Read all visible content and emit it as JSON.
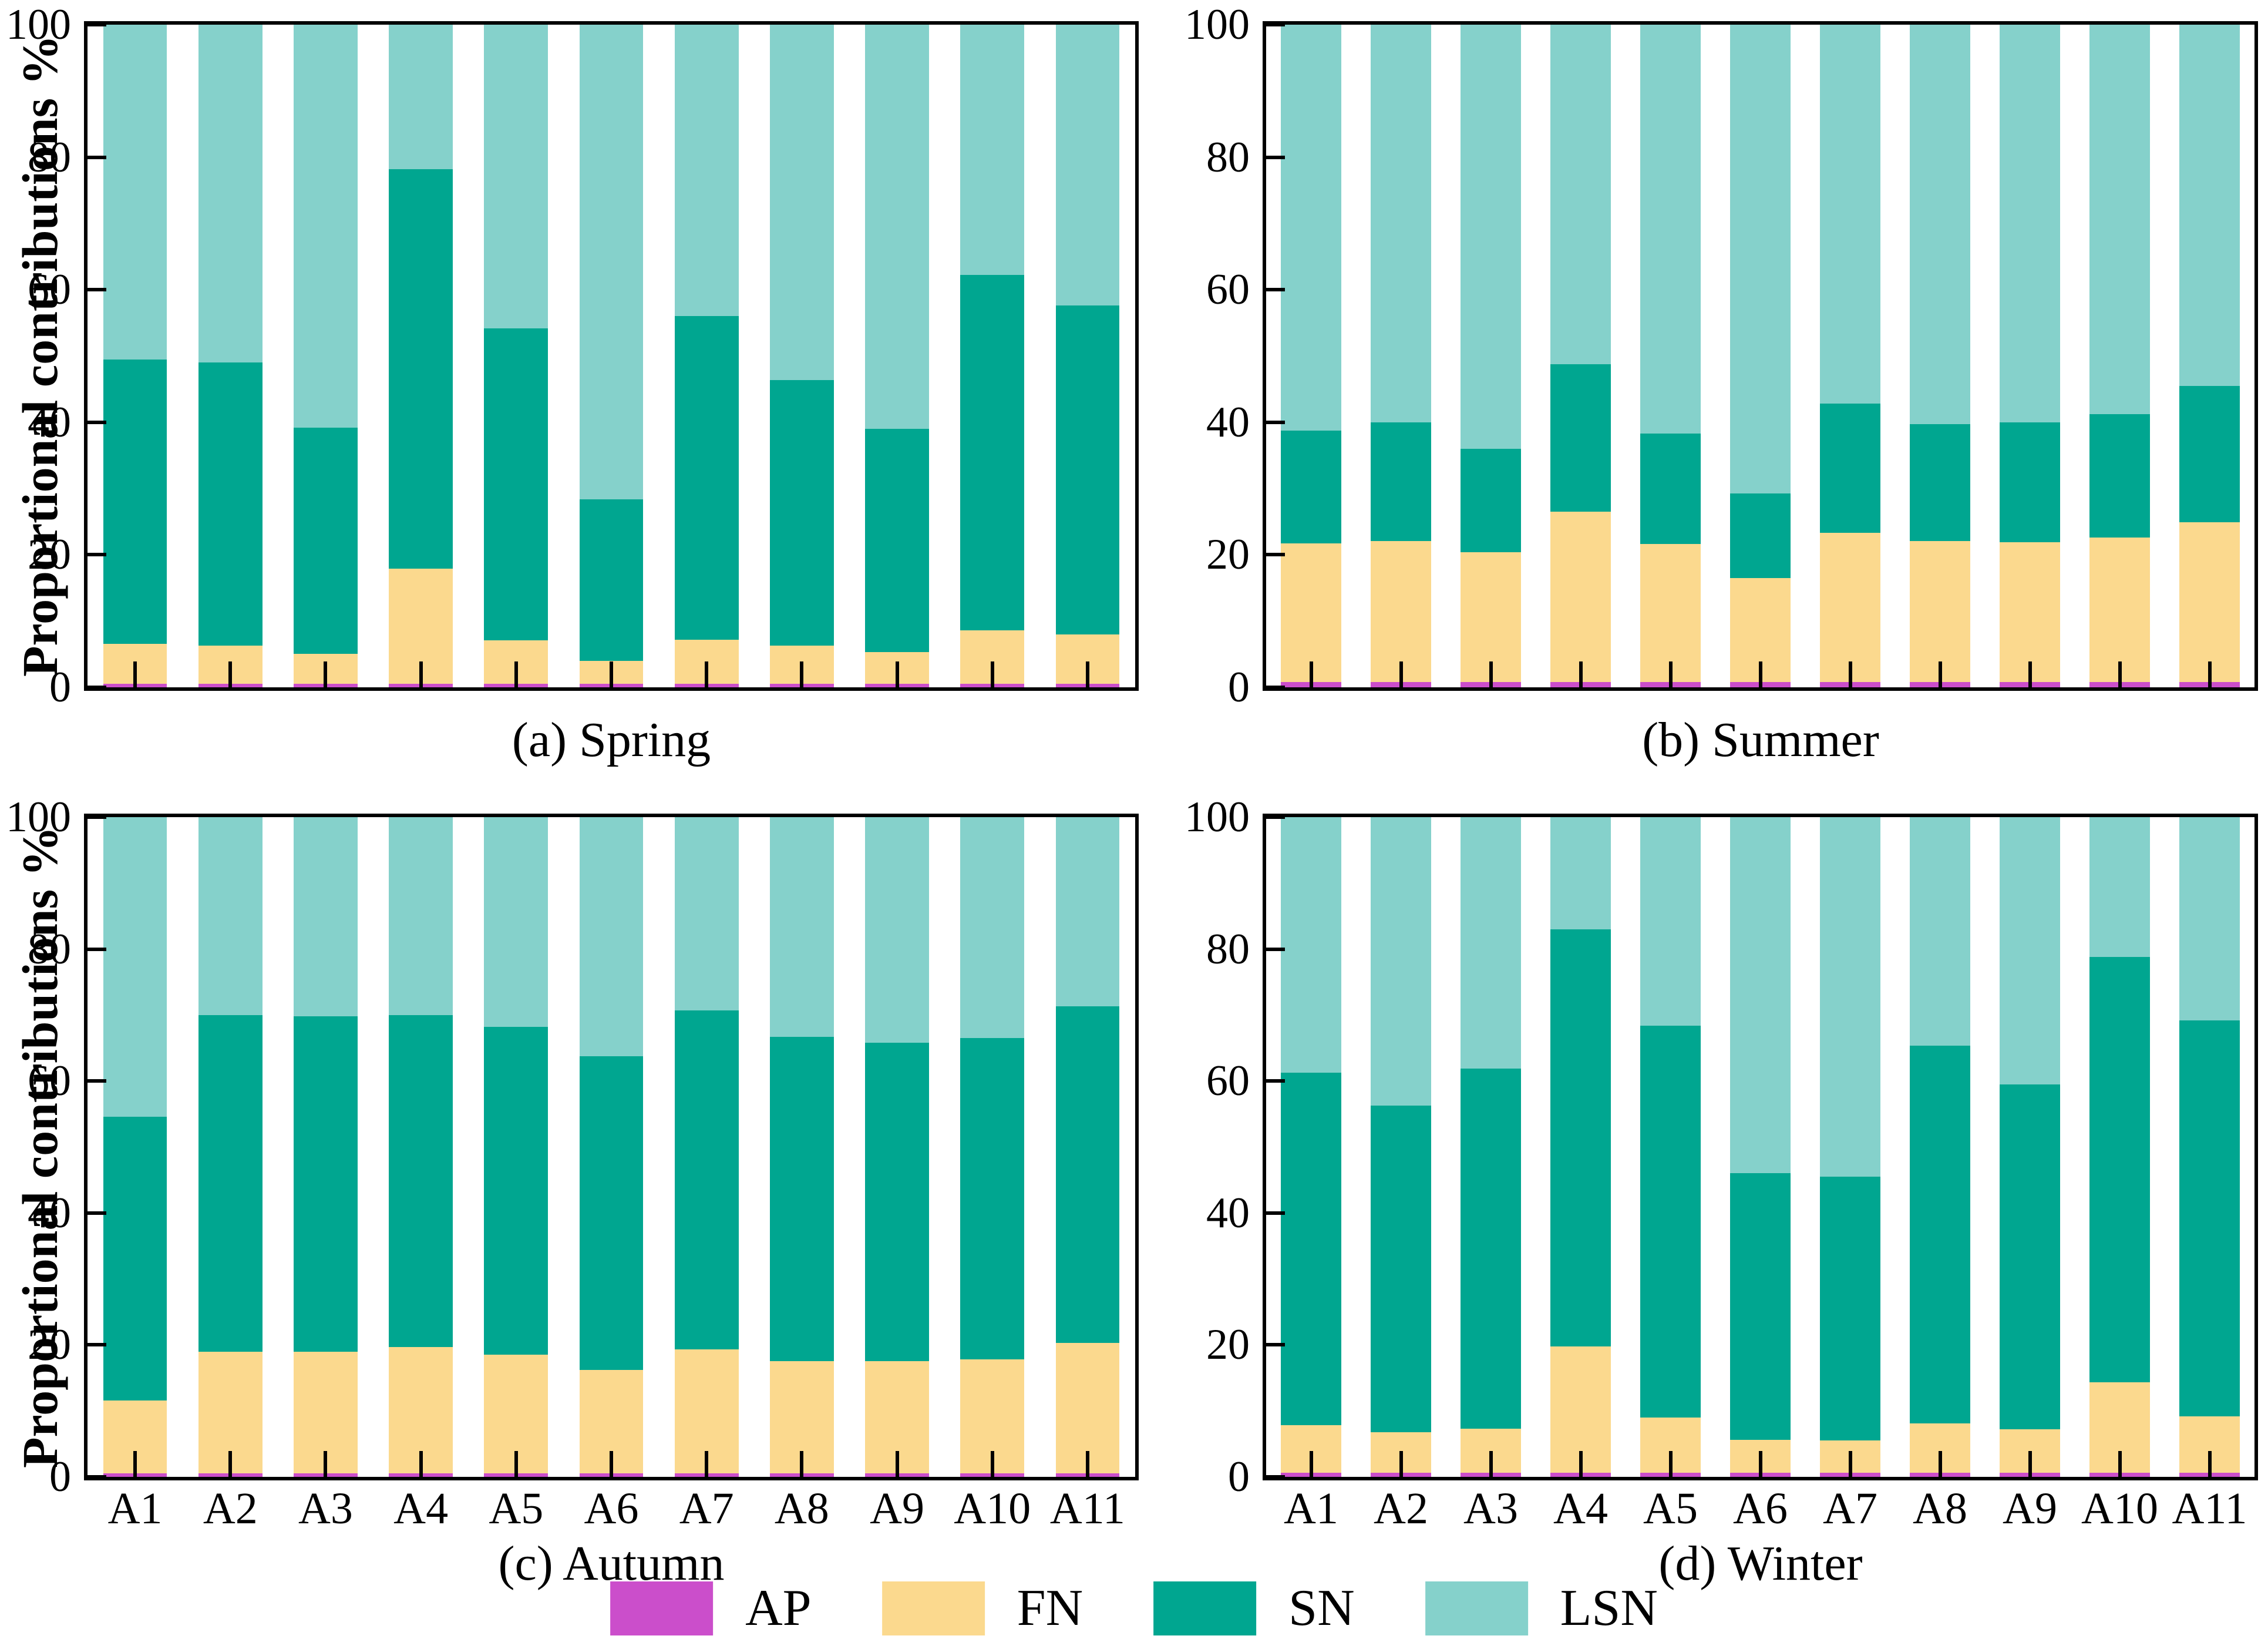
{
  "figure": {
    "ylabel": "Proportional contributions %",
    "yticks": [
      0,
      20,
      40,
      60,
      80,
      100
    ],
    "background": "#ffffff",
    "axis_color": "#000000"
  },
  "legend": {
    "entries": [
      {
        "label": "AP",
        "color": "#cb4ecb"
      },
      {
        "label": "FN",
        "color": "#fbd98e"
      },
      {
        "label": "SN",
        "color": "#00a690"
      },
      {
        "label": "LSN",
        "color": "#85d1cb"
      }
    ]
  },
  "chart_data": [
    {
      "type": "bar",
      "stacked": true,
      "title": "(a) Spring",
      "show_x_labels": false,
      "ylim": [
        0,
        100
      ],
      "categories": [
        "A1",
        "A2",
        "A3",
        "A4",
        "A5",
        "A6",
        "A7",
        "A8",
        "A9",
        "A10",
        "A11"
      ],
      "series": [
        {
          "name": "AP",
          "color": "#cb4ecb",
          "values": [
            0.5,
            0.5,
            0.5,
            0.5,
            0.5,
            0.5,
            0.5,
            0.5,
            0.5,
            0.5,
            0.5
          ]
        },
        {
          "name": "FN",
          "color": "#fbd98e",
          "values": [
            6.1,
            5.8,
            4.6,
            17.4,
            6.6,
            3.5,
            6.7,
            5.8,
            4.8,
            8.1,
            7.5
          ]
        },
        {
          "name": "SN",
          "color": "#00a690",
          "values": [
            42.9,
            42.7,
            34.1,
            60.3,
            47.1,
            24.4,
            48.8,
            40.1,
            33.7,
            53.6,
            49.6
          ]
        },
        {
          "name": "LSN",
          "color": "#85d1cb",
          "values": [
            50.5,
            51.0,
            60.8,
            21.8,
            45.8,
            71.6,
            44.0,
            53.6,
            61.0,
            37.8,
            42.4
          ]
        }
      ]
    },
    {
      "type": "bar",
      "stacked": true,
      "title": "(b) Summer",
      "show_x_labels": false,
      "ylim": [
        0,
        100
      ],
      "categories": [
        "A1",
        "A2",
        "A3",
        "A4",
        "A5",
        "A6",
        "A7",
        "A8",
        "A9",
        "A10",
        "A11"
      ],
      "series": [
        {
          "name": "AP",
          "color": "#cb4ecb",
          "values": [
            0.8,
            0.8,
            0.8,
            0.8,
            0.8,
            0.8,
            0.8,
            0.8,
            0.8,
            0.8,
            0.8
          ]
        },
        {
          "name": "FN",
          "color": "#fbd98e",
          "values": [
            20.9,
            21.3,
            19.6,
            25.7,
            20.8,
            15.7,
            22.5,
            21.3,
            21.1,
            21.8,
            24.1
          ]
        },
        {
          "name": "SN",
          "color": "#00a690",
          "values": [
            17.0,
            17.9,
            15.6,
            22.3,
            16.7,
            12.8,
            19.5,
            17.6,
            18.1,
            18.6,
            20.6
          ]
        },
        {
          "name": "LSN",
          "color": "#85d1cb",
          "values": [
            61.3,
            60.0,
            64.0,
            51.2,
            61.7,
            70.7,
            57.2,
            60.3,
            60.0,
            58.8,
            54.5
          ]
        }
      ]
    },
    {
      "type": "bar",
      "stacked": true,
      "title": "(c) Autumn",
      "show_x_labels": true,
      "ylim": [
        0,
        100
      ],
      "categories": [
        "A1",
        "A2",
        "A3",
        "A4",
        "A5",
        "A6",
        "A7",
        "A8",
        "A9",
        "A10",
        "A11"
      ],
      "series": [
        {
          "name": "AP",
          "color": "#cb4ecb",
          "values": [
            0.5,
            0.5,
            0.5,
            0.5,
            0.5,
            0.5,
            0.5,
            0.5,
            0.5,
            0.5,
            0.5
          ]
        },
        {
          "name": "FN",
          "color": "#fbd98e",
          "values": [
            11.1,
            18.5,
            18.5,
            19.2,
            18.0,
            15.7,
            18.8,
            17.0,
            17.0,
            17.3,
            19.8
          ]
        },
        {
          "name": "SN",
          "color": "#00a690",
          "values": [
            43.0,
            51.0,
            50.8,
            50.3,
            49.7,
            47.6,
            51.4,
            49.2,
            48.3,
            48.7,
            51.0
          ]
        },
        {
          "name": "LSN",
          "color": "#85d1cb",
          "values": [
            45.4,
            30.0,
            30.2,
            30.0,
            31.8,
            36.2,
            29.3,
            33.3,
            34.2,
            33.5,
            28.7
          ]
        }
      ]
    },
    {
      "type": "bar",
      "stacked": true,
      "title": "(d) Winter",
      "show_x_labels": true,
      "ylim": [
        0,
        100
      ],
      "categories": [
        "A1",
        "A2",
        "A3",
        "A4",
        "A5",
        "A6",
        "A7",
        "A8",
        "A9",
        "A10",
        "A11"
      ],
      "series": [
        {
          "name": "AP",
          "color": "#cb4ecb",
          "values": [
            0.6,
            0.6,
            0.6,
            0.6,
            0.6,
            0.6,
            0.6,
            0.6,
            0.6,
            0.6,
            0.6
          ]
        },
        {
          "name": "FN",
          "color": "#fbd98e",
          "values": [
            7.2,
            6.2,
            6.7,
            19.2,
            8.4,
            5.0,
            4.9,
            7.5,
            6.6,
            13.7,
            8.6
          ]
        },
        {
          "name": "SN",
          "color": "#00a690",
          "values": [
            53.5,
            49.5,
            54.6,
            63.2,
            59.4,
            40.4,
            40.0,
            57.3,
            52.3,
            64.5,
            60.0
          ]
        },
        {
          "name": "LSN",
          "color": "#85d1cb",
          "values": [
            38.7,
            43.7,
            38.1,
            17.0,
            31.6,
            54.0,
            54.5,
            34.6,
            40.5,
            21.2,
            30.8
          ]
        }
      ]
    }
  ]
}
